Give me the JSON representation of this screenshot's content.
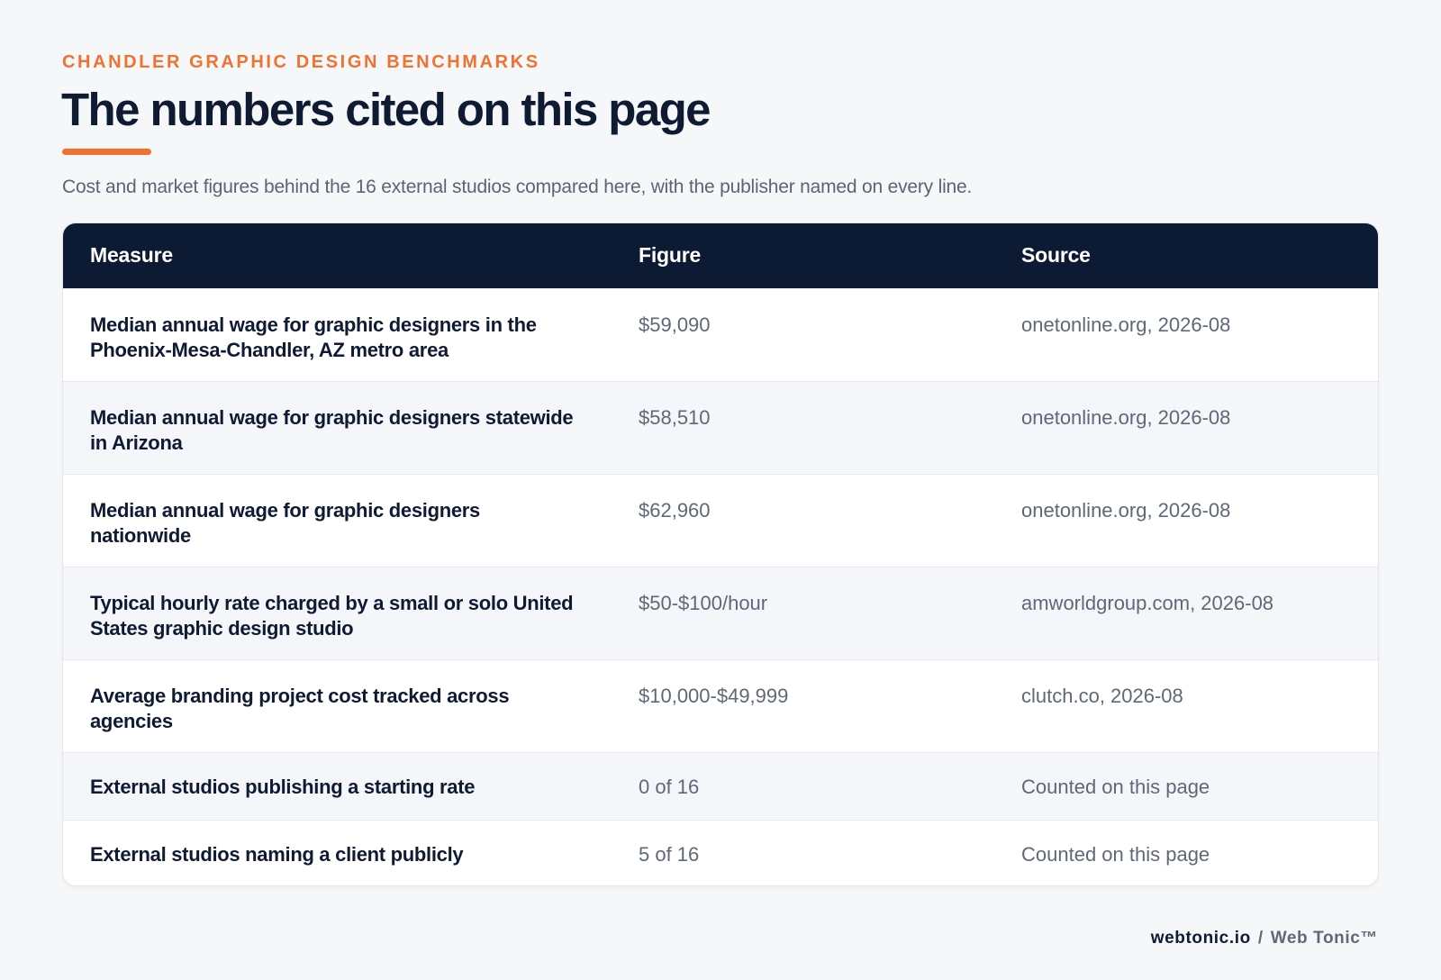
{
  "header": {
    "eyebrow": "CHANDLER GRAPHIC DESIGN BENCHMARKS",
    "title": "The numbers cited on this page",
    "lede": "Cost and market figures behind the 16 external studios compared here, with the publisher named on every line."
  },
  "table": {
    "columns": [
      "Measure",
      "Figure",
      "Source"
    ],
    "rows": [
      {
        "measure": "Median annual wage for graphic designers in the Phoenix-Mesa-Chandler, AZ metro area",
        "figure": "$59,090",
        "source": "onetonline.org, 2026-08"
      },
      {
        "measure": "Median annual wage for graphic designers statewide in Arizona",
        "figure": "$58,510",
        "source": "onetonline.org, 2026-08"
      },
      {
        "measure": "Median annual wage for graphic designers nationwide",
        "figure": "$62,960",
        "source": "onetonline.org, 2026-08"
      },
      {
        "measure": "Typical hourly rate charged by a small or solo United States graphic design studio",
        "figure": "$50-$100/hour",
        "source": "amworldgroup.com, 2026-08"
      },
      {
        "measure": "Average branding project cost tracked across agencies",
        "figure": "$10,000-$49,999",
        "source": "clutch.co, 2026-08"
      },
      {
        "measure": "External studios publishing a starting rate",
        "figure": "0 of 16",
        "source": "Counted on this page"
      },
      {
        "measure": "External studios naming a client publicly",
        "figure": "5 of 16",
        "source": "Counted on this page"
      }
    ]
  },
  "footer": {
    "site": "webtonic.io",
    "separator": "/",
    "brand": "Web Tonic™"
  },
  "colors": {
    "accent": "#f07230",
    "header_bg": "#0c1a33",
    "page_bg": "#f6f7f9",
    "text_dark": "#0f1a33",
    "text_muted": "#5f6876"
  }
}
